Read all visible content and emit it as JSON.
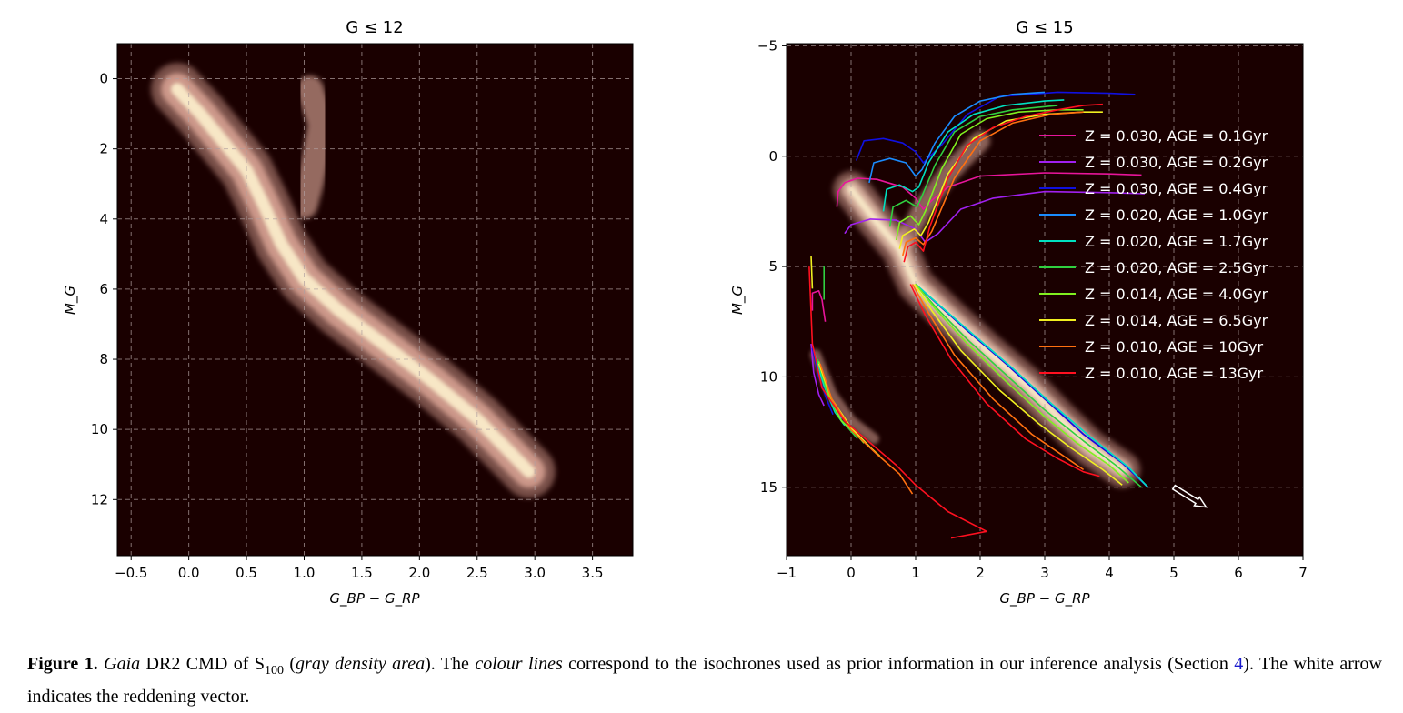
{
  "chart_data": [
    {
      "type": "scatter",
      "title": "G ≤ 12",
      "xlabel": "G_BP − G_RP",
      "ylabel": "M_G",
      "xlim": [
        -0.62,
        3.85
      ],
      "ylim": [
        13.6,
        -1.0
      ],
      "y_inverted": true,
      "xticks": [
        -0.5,
        0.0,
        0.5,
        1.0,
        1.5,
        2.0,
        2.5,
        3.0,
        3.5
      ],
      "xtick_labels": [
        "−0.5",
        "0.0",
        "0.5",
        "1.0",
        "1.5",
        "2.0",
        "2.5",
        "3.0",
        "3.5"
      ],
      "yticks": [
        0,
        2,
        4,
        6,
        8,
        10,
        12
      ],
      "ytick_labels": [
        "0",
        "2",
        "4",
        "6",
        "8",
        "10",
        "12"
      ],
      "grid": true,
      "background": "#1a0000",
      "density_color": "#e8b0a0",
      "density_core_color": "#fff4d0",
      "main_sequence_ridge": [
        [
          -0.1,
          0.3
        ],
        [
          0.1,
          1.0
        ],
        [
          0.3,
          1.8
        ],
        [
          0.5,
          2.6
        ],
        [
          0.65,
          3.6
        ],
        [
          0.8,
          4.7
        ],
        [
          1.0,
          5.7
        ],
        [
          1.3,
          6.6
        ],
        [
          1.7,
          7.6
        ],
        [
          2.1,
          8.6
        ],
        [
          2.5,
          9.7
        ],
        [
          2.8,
          10.7
        ],
        [
          2.95,
          11.2
        ]
      ],
      "giant_branch_ridge": [
        [
          1.05,
          0.3
        ],
        [
          1.15,
          1.3
        ],
        [
          1.1,
          2.2
        ],
        [
          1.05,
          3.0
        ],
        [
          1.0,
          3.6
        ]
      ]
    },
    {
      "type": "line",
      "title": "G ≤ 15",
      "xlabel": "G_BP − G_RP",
      "ylabel": "M_G",
      "xlim": [
        -1,
        7
      ],
      "ylim": [
        18.1,
        -5.1
      ],
      "y_inverted": true,
      "xticks": [
        -1,
        0,
        1,
        2,
        3,
        4,
        5,
        6,
        7
      ],
      "xtick_labels": [
        "−1",
        "0",
        "1",
        "2",
        "3",
        "4",
        "5",
        "6",
        "7"
      ],
      "yticks": [
        -5,
        0,
        5,
        10,
        15
      ],
      "ytick_labels": [
        "−5",
        "0",
        "5",
        "10",
        "15"
      ],
      "grid": true,
      "legend_position": "right",
      "background": "#1a0000",
      "series": [
        {
          "name": "Z = 0.030,  AGE = 0.1Gyr",
          "color": "#e8159b",
          "x": [
            -0.22,
            -0.2,
            -0.1,
            0.1,
            0.4,
            0.8,
            1.0,
            1.12,
            1.25,
            1.5,
            2.0,
            3.0,
            4.0,
            4.5
          ],
          "y": [
            2.3,
            1.6,
            1.2,
            1.0,
            1.05,
            1.4,
            1.9,
            2.4,
            2.0,
            1.4,
            0.9,
            0.75,
            0.8,
            0.85
          ]
        },
        {
          "name": "Z = 0.030,  AGE = 0.2Gyr",
          "color": "#a020f0",
          "x": [
            -0.1,
            0.0,
            0.3,
            0.7,
            1.0,
            1.15,
            1.35,
            1.7,
            2.2,
            3.0,
            4.0,
            4.55
          ],
          "y": [
            3.5,
            3.1,
            2.85,
            2.9,
            3.3,
            3.9,
            3.5,
            2.4,
            1.9,
            1.6,
            1.65,
            1.7
          ]
        },
        {
          "name": "Z = 0.030,  AGE = 0.4Gyr",
          "color": "#1010e0",
          "x": [
            0.08,
            0.2,
            0.5,
            0.8,
            1.0,
            1.12,
            1.4,
            1.8,
            2.3,
            3.2,
            4.0,
            4.4
          ],
          "y": [
            0.2,
            -0.7,
            -0.8,
            -0.6,
            -0.2,
            0.3,
            -0.5,
            -1.9,
            -2.7,
            -2.9,
            -2.85,
            -2.8
          ]
        },
        {
          "name": "Z = 0.020,  AGE = 1.0Gyr",
          "color": "#1a8cff",
          "x": [
            0.28,
            0.35,
            0.6,
            0.85,
            1.0,
            1.1,
            1.3,
            1.6,
            2.0,
            2.5,
            3.0
          ],
          "y": [
            1.2,
            0.3,
            0.1,
            0.3,
            0.9,
            0.6,
            -0.6,
            -1.8,
            -2.5,
            -2.8,
            -2.9
          ]
        },
        {
          "name": "Z = 0.020,  AGE = 1.7Gyr",
          "color": "#00e0c0",
          "x": [
            0.5,
            0.55,
            0.75,
            0.95,
            1.05,
            1.2,
            1.5,
            1.9,
            2.4,
            3.0,
            3.3
          ],
          "y": [
            2.5,
            1.5,
            1.3,
            1.6,
            1.4,
            0.3,
            -1.1,
            -1.9,
            -2.3,
            -2.5,
            -2.55
          ]
        },
        {
          "name": "Z = 0.020,  AGE = 2.5Gyr",
          "color": "#30d040",
          "x": [
            0.6,
            0.65,
            0.85,
            1.02,
            1.1,
            1.3,
            1.6,
            2.0,
            2.5,
            3.2
          ],
          "y": [
            3.2,
            2.3,
            2.0,
            2.3,
            1.8,
            0.4,
            -1.1,
            -1.8,
            -2.1,
            -2.3
          ]
        },
        {
          "name": "Z = 0.014,  AGE = 4.0Gyr",
          "color": "#80f020",
          "x": [
            0.7,
            0.75,
            0.92,
            1.05,
            1.15,
            1.4,
            1.7,
            2.1,
            2.6,
            3.2,
            3.6
          ],
          "y": [
            3.8,
            3.0,
            2.7,
            3.1,
            2.5,
            0.6,
            -1.0,
            -1.7,
            -2.0,
            -2.1,
            -2.1
          ]
        },
        {
          "name": "Z = 0.014,  AGE = 6.5Gyr",
          "color": "#f0f020",
          "x": [
            0.75,
            0.8,
            0.98,
            1.08,
            1.2,
            1.5,
            1.9,
            2.4,
            3.0,
            3.6,
            3.9
          ],
          "y": [
            4.2,
            3.6,
            3.3,
            3.6,
            3.0,
            0.8,
            -0.8,
            -1.6,
            -1.9,
            -2.0,
            -2.0
          ]
        },
        {
          "name": "Z = 0.010,  AGE = 10Gyr",
          "color": "#ff7010",
          "x": [
            0.8,
            0.85,
            1.0,
            1.12,
            1.25,
            1.6,
            2.0,
            2.5,
            3.1,
            3.6
          ],
          "y": [
            4.5,
            3.9,
            3.7,
            4.0,
            3.4,
            1.0,
            -0.7,
            -1.5,
            -1.9,
            -2.0
          ]
        },
        {
          "name": "Z = 0.010,  AGE = 13Gyr",
          "color": "#ff1020",
          "x": [
            0.82,
            0.88,
            1.0,
            1.12,
            1.22,
            1.5,
            1.8,
            2.2,
            2.7,
            3.2,
            3.6,
            3.9
          ],
          "y": [
            4.8,
            4.1,
            3.9,
            4.3,
            3.2,
            1.0,
            -0.5,
            -1.3,
            -1.8,
            -2.1,
            -2.3,
            -2.35
          ]
        }
      ],
      "main_sequence_tracks": [
        {
          "color": "#e8159b",
          "x": [
            1.0,
            1.3,
            1.8,
            2.4,
            3.0,
            3.6,
            4.2,
            4.6
          ],
          "y": [
            5.8,
            6.6,
            7.9,
            9.4,
            11.0,
            12.6,
            13.9,
            15.0
          ]
        },
        {
          "color": "#a020f0",
          "x": [
            1.0,
            1.3,
            1.8,
            2.4,
            3.0,
            3.6,
            4.2,
            4.6
          ],
          "y": [
            5.8,
            6.6,
            7.9,
            9.4,
            11.0,
            12.6,
            13.9,
            15.0
          ]
        },
        {
          "color": "#1010e0",
          "x": [
            1.0,
            1.3,
            1.8,
            2.4,
            3.0,
            3.6,
            4.2,
            4.6
          ],
          "y": [
            5.8,
            6.6,
            7.9,
            9.4,
            11.0,
            12.6,
            13.9,
            15.0
          ]
        },
        {
          "color": "#1a8cff",
          "x": [
            1.0,
            1.35,
            1.9,
            2.5,
            3.1,
            3.7,
            4.3,
            4.6
          ],
          "y": [
            5.8,
            6.7,
            8.1,
            9.6,
            11.2,
            12.7,
            14.1,
            15.0
          ]
        },
        {
          "color": "#00e0c0",
          "x": [
            1.0,
            1.35,
            1.9,
            2.5,
            3.1,
            3.7,
            4.3,
            4.6
          ],
          "y": [
            5.8,
            6.7,
            8.1,
            9.6,
            11.2,
            12.7,
            14.1,
            15.0
          ]
        },
        {
          "color": "#30d040",
          "x": [
            1.0,
            1.3,
            1.8,
            2.4,
            3.0,
            3.6,
            4.1,
            4.5
          ],
          "y": [
            5.8,
            6.8,
            8.3,
            9.9,
            11.5,
            12.9,
            14.0,
            15.0
          ]
        },
        {
          "color": "#80f020",
          "x": [
            1.0,
            1.3,
            1.8,
            2.4,
            3.0,
            3.5,
            4.0,
            4.3
          ],
          "y": [
            5.8,
            6.9,
            8.5,
            10.2,
            11.8,
            13.0,
            14.0,
            14.8
          ]
        },
        {
          "color": "#f0f020",
          "x": [
            0.98,
            1.25,
            1.7,
            2.3,
            2.9,
            3.4,
            3.9,
            4.2
          ],
          "y": [
            5.8,
            7.0,
            8.8,
            10.6,
            12.1,
            13.2,
            14.2,
            14.9
          ]
        },
        {
          "color": "#ff7010",
          "x": [
            0.95,
            1.2,
            1.6,
            2.2,
            2.8,
            3.3,
            3.6
          ],
          "y": [
            5.8,
            7.1,
            9.0,
            11.0,
            12.6,
            13.6,
            14.2
          ]
        },
        {
          "color": "#ff1020",
          "x": [
            0.92,
            1.15,
            1.55,
            2.1,
            2.7,
            3.2,
            3.6,
            3.85
          ],
          "y": [
            5.8,
            7.2,
            9.2,
            11.2,
            12.8,
            13.7,
            14.3,
            14.5
          ]
        }
      ],
      "white_dwarf_tracks": [
        {
          "color": "#e8159b",
          "x": [
            -0.6,
            -0.6,
            -0.5,
            -0.45,
            -0.4
          ],
          "y": [
            7.0,
            6.2,
            6.1,
            6.5,
            7.5
          ]
        },
        {
          "color": "#a020f0",
          "x": [
            -0.62,
            -0.58,
            -0.5,
            -0.42
          ],
          "y": [
            8.5,
            9.8,
            10.8,
            11.3
          ]
        },
        {
          "color": "#1010e0",
          "x": [
            -0.6,
            -0.5,
            -0.38,
            -0.28
          ],
          "y": [
            8.7,
            10.0,
            11.0,
            11.7
          ]
        },
        {
          "color": "#1a8cff",
          "x": [
            -0.58,
            -0.45,
            -0.3,
            -0.15
          ],
          "y": [
            8.8,
            10.1,
            11.2,
            11.9
          ]
        },
        {
          "color": "#00e0c0",
          "x": [
            -0.56,
            -0.42,
            -0.25,
            -0.1
          ],
          "y": [
            9.0,
            10.4,
            11.6,
            12.2
          ]
        },
        {
          "color": "#30d040",
          "x": [
            -0.52,
            -0.38,
            -0.2,
            -0.05,
            0.1
          ],
          "y": [
            9.2,
            10.6,
            11.8,
            12.3,
            12.8
          ]
        },
        {
          "color": "#80f020",
          "x": [
            -0.5,
            -0.35,
            -0.15,
            0.05,
            0.2
          ],
          "y": [
            9.3,
            10.8,
            12.0,
            12.5,
            13.0
          ]
        },
        {
          "color": "#f0f020",
          "x": [
            -0.5,
            -0.3,
            0.0,
            0.3,
            0.45
          ],
          "y": [
            9.4,
            11.0,
            12.3,
            13.2,
            13.6
          ]
        },
        {
          "color": "#ff7010",
          "x": [
            -0.48,
            -0.3,
            0.0,
            0.4,
            0.75,
            0.95
          ],
          "y": [
            9.4,
            11.0,
            12.4,
            13.5,
            14.4,
            15.3
          ]
        },
        {
          "color": "#ff1020",
          "x": [
            -0.65,
            -0.6,
            -0.45,
            -0.1,
            0.3,
            0.7,
            1.0,
            1.5,
            2.1,
            1.55
          ],
          "y": [
            5.0,
            8.5,
            10.5,
            12.0,
            13.0,
            14.0,
            14.9,
            16.1,
            17.0,
            17.3
          ]
        },
        {
          "color": "#f0f020",
          "x": [
            -0.62,
            -0.6
          ],
          "y": [
            4.5,
            6.0
          ]
        },
        {
          "color": "#30d040",
          "x": [
            -0.42,
            -0.42
          ],
          "y": [
            5.0,
            6.5
          ]
        }
      ],
      "reddening_vector": {
        "color": "#ffffff",
        "from": [
          5.0,
          15.0
        ],
        "to": [
          5.5,
          15.9
        ]
      }
    }
  ],
  "caption": {
    "label": "Figure 1.",
    "part1": "Gaia",
    "part2": " DR2 CMD of S",
    "part2_sub": "100",
    "part3": " (",
    "part4": "gray density area",
    "part5": "). The ",
    "part6": "colour lines",
    "part7": " correspond to the isochrones used as prior information in our inference analysis (Section ",
    "ref": "4",
    "part8": "). The white arrow indicates the reddening vector."
  }
}
